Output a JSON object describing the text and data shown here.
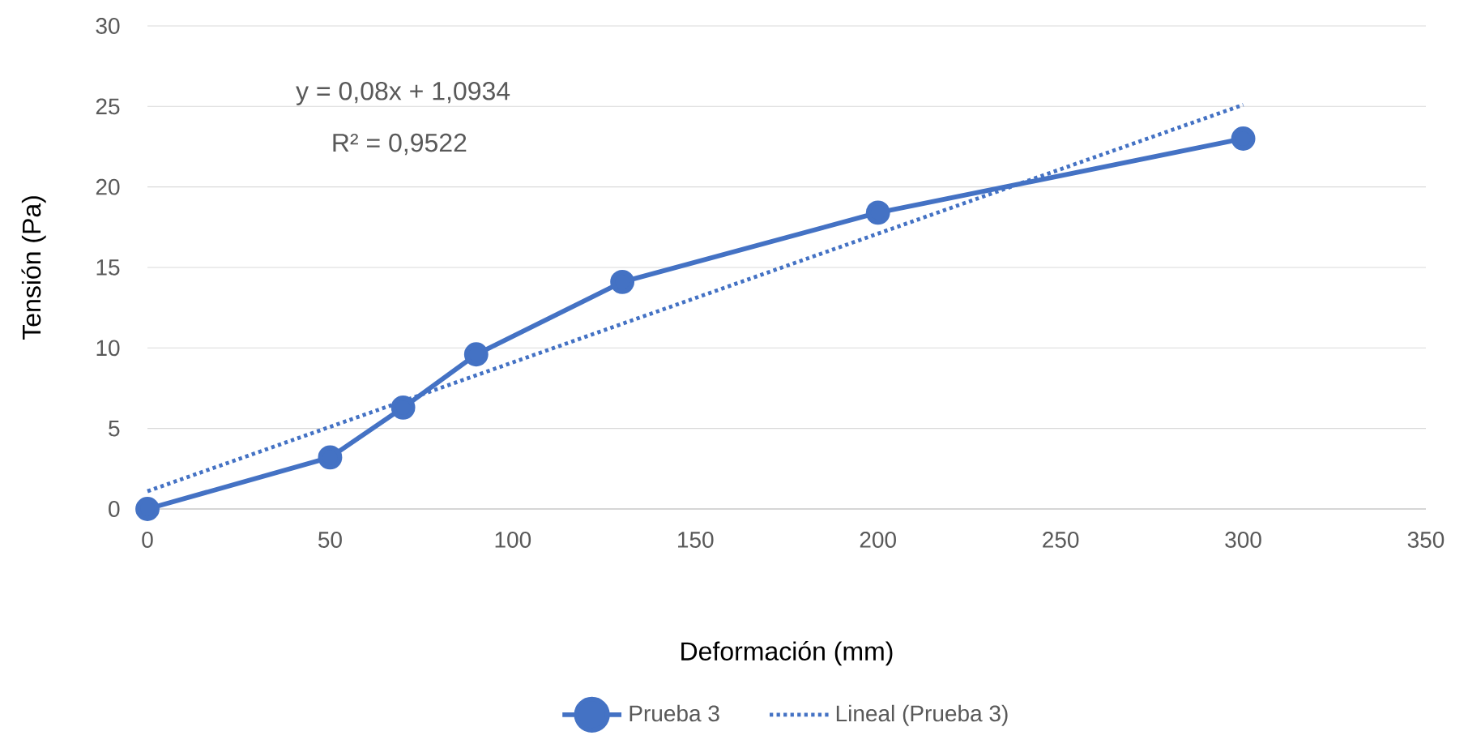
{
  "chart_data": {
    "type": "line",
    "xlabel": "Deformación (mm)",
    "ylabel": "Tensión (Pa)",
    "xlim": [
      0,
      350
    ],
    "xticks": [
      0,
      50,
      100,
      150,
      200,
      250,
      300,
      350
    ],
    "ylim": [
      0,
      30
    ],
    "yticks": [
      0,
      5,
      10,
      15,
      20,
      25,
      30
    ],
    "grid": "y",
    "legend": "bottom",
    "annotations": [
      "y = 0,08x + 1,0934",
      "R² = 0,9522"
    ],
    "series": [
      {
        "name": "Prueba 3",
        "color": "#4472c4",
        "x": [
          0,
          50,
          70,
          90,
          130,
          200,
          300
        ],
        "values": [
          0,
          3.2,
          6.3,
          9.6,
          14.1,
          18.4,
          23
        ],
        "marker": "circle",
        "line_style": "solid"
      },
      {
        "name": "Lineal (Prueba 3)",
        "color": "#4472c4",
        "x": [
          0,
          300
        ],
        "values": [
          1.1,
          25.1
        ],
        "marker": "none",
        "line_style": "dotted"
      }
    ]
  }
}
